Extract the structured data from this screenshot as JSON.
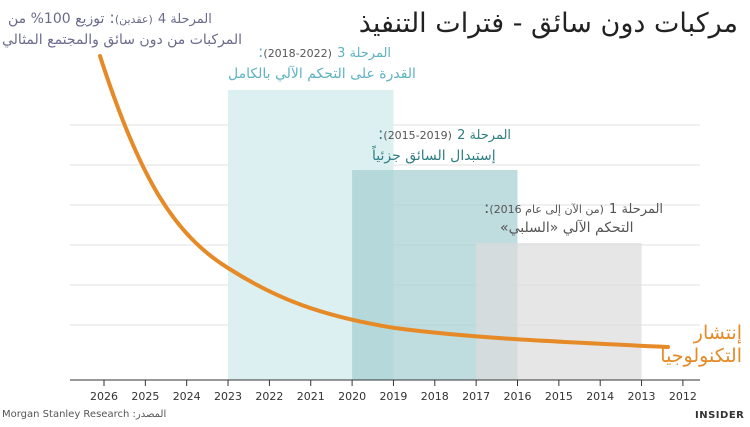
{
  "title": "مركبات دون سائق - فترات التنفيذ",
  "phases": [
    {
      "name": "المرحلة 4",
      "range": "(عقدين)",
      "desc_line1": "توزيع 100% من",
      "desc_line2": "المركبات من دون سائق والمجتمع المثالي",
      "color": "#6b6b8e"
    },
    {
      "name": "المرحلة 3",
      "range": "(2022-2018)",
      "desc": "القدرة على التحكم الآلي بالكامل",
      "color": "#5fb3c0"
    },
    {
      "name": "المرحلة 2",
      "range": "(2019-2015)",
      "desc": "إستبدال السائق جزئياً",
      "color": "#2f7f82"
    },
    {
      "name": "المرحلة 1",
      "range": "(من الآن إلى عام 2016)",
      "desc": "التحكم الآلي «السلبي»",
      "color": "#555555"
    }
  ],
  "adoption_label_line1": "إنتشار",
  "adoption_label_line2": "التكنولوجيا",
  "source": "المصدر: Morgan Stanley Research",
  "brand": "INSIDER",
  "chart_data": {
    "type": "area",
    "x_axis_reversed": true,
    "categories": [
      "2026",
      "2025",
      "2024",
      "2023",
      "2022",
      "2021",
      "2020",
      "2019",
      "2018",
      "2017",
      "2016",
      "2015",
      "2014",
      "2013",
      "2012"
    ],
    "phase_periods": [
      {
        "phase": "المرحلة 3",
        "start": "2023",
        "end": "2019",
        "color": "#dcf0f1"
      },
      {
        "phase": "المرحلة 2",
        "start": "2020",
        "end": "2016",
        "color": "#a6cfd2"
      },
      {
        "phase": "المرحلة 1",
        "start": "2017",
        "end": "2013",
        "color": "#dcdcdc"
      }
    ],
    "adoption_curve_color": "#e58a26",
    "grid": true
  }
}
